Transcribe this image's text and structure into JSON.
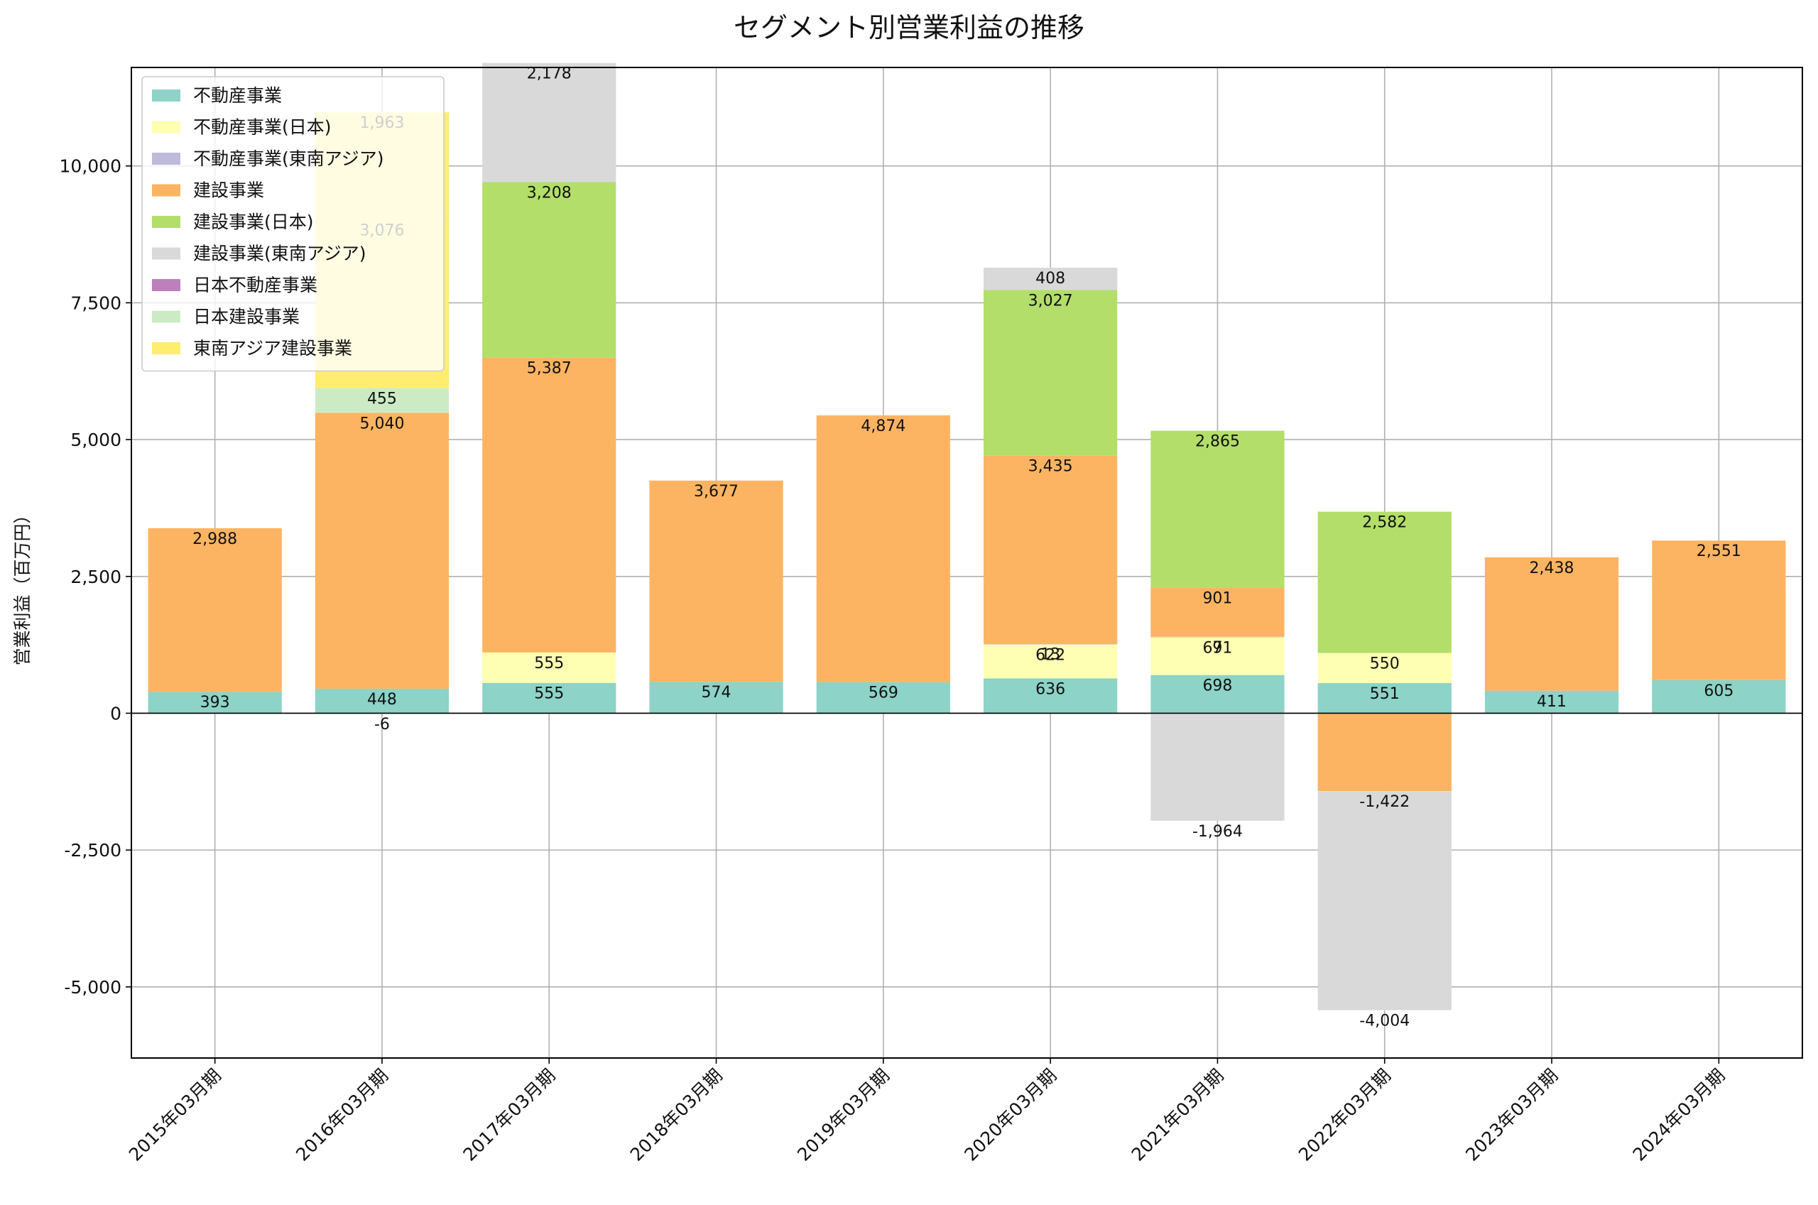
{
  "chart_data": {
    "type": "bar",
    "stacked": true,
    "title": "セグメント別営業利益の推移",
    "xlabel": "",
    "ylabel": "営業利益（百万円）",
    "ylim": [
      -6300,
      11800
    ],
    "yticks": [
      -5000,
      -2500,
      0,
      2500,
      5000,
      7500,
      10000
    ],
    "ytick_labels": [
      "-5,000",
      "-2,500",
      "0",
      "2,500",
      "5,000",
      "7,500",
      "10,000"
    ],
    "grid": true,
    "legend_position": "top-left",
    "categories": [
      "2015年03月期",
      "2016年03月期",
      "2017年03月期",
      "2018年03月期",
      "2019年03月期",
      "2020年03月期",
      "2021年03月期",
      "2022年03月期",
      "2023年03月期",
      "2024年03月期"
    ],
    "series": [
      {
        "name": "不動産事業",
        "color": "#8dd3c7",
        "values": [
          393,
          448,
          555,
          574,
          569,
          636,
          698,
          551,
          411,
          605
        ],
        "labels": [
          "393",
          "448",
          "555",
          "574",
          "569",
          "636",
          "698",
          "551",
          "411",
          "605"
        ]
      },
      {
        "name": "不動産事業(日本)",
        "color": "#ffffb3",
        "values": [
          null,
          null,
          555,
          null,
          null,
          622,
          691,
          550,
          null,
          null
        ],
        "labels": [
          "",
          "",
          "555",
          "",
          "",
          "622",
          "691",
          "550",
          "",
          ""
        ]
      },
      {
        "name": "不動産事業(東南アジア)",
        "color": "#bebada",
        "values": [
          null,
          null,
          null,
          null,
          null,
          13,
          7,
          null,
          null,
          null
        ],
        "labels": [
          "",
          "",
          "",
          "",
          "",
          "13",
          "7",
          "",
          "",
          ""
        ]
      },
      {
        "name": "建設事業",
        "color": "#fdb462",
        "values": [
          2988,
          5040,
          5387,
          3677,
          4874,
          3435,
          901,
          -1422,
          2438,
          2551
        ],
        "labels": [
          "2,988",
          "5,040",
          "5,387",
          "3,677",
          "4,874",
          "3,435",
          "901",
          "-1,422",
          "2,438",
          "2,551"
        ]
      },
      {
        "name": "建設事業(日本)",
        "color": "#b3de69",
        "values": [
          null,
          null,
          3208,
          null,
          null,
          3027,
          2865,
          2582,
          null,
          null
        ],
        "labels": [
          "",
          "",
          "3,208",
          "",
          "",
          "3,027",
          "2,865",
          "2,582",
          "",
          ""
        ]
      },
      {
        "name": "建設事業(東南アジア)",
        "color": "#d9d9d9",
        "values": [
          null,
          null,
          2178,
          null,
          null,
          408,
          -1964,
          -4004,
          null,
          null
        ],
        "labels": [
          "",
          "",
          "2,178",
          "",
          "",
          "408",
          "-1,964",
          "-4,004",
          "",
          ""
        ]
      },
      {
        "name": "日本不動産事業",
        "color": "#bc80bd",
        "values": [
          null,
          -6,
          null,
          null,
          null,
          null,
          null,
          null,
          null,
          null
        ],
        "labels": [
          "",
          "-6",
          "",
          "",
          "",
          "",
          "",
          "",
          "",
          ""
        ]
      },
      {
        "name": "日本建設事業",
        "color": "#ccebc5",
        "values": [
          null,
          455,
          null,
          null,
          null,
          null,
          null,
          null,
          null,
          null
        ],
        "labels": [
          "",
          "455",
          "",
          "",
          "",
          "",
          "",
          "",
          "",
          ""
        ]
      },
      {
        "name": "東南アジア建設事業",
        "color": "#ffed6f",
        "values": [
          null,
          3076,
          null,
          null,
          null,
          null,
          null,
          null,
          null,
          null
        ],
        "labels": [
          "",
          "3,076",
          "",
          "",
          "",
          "",
          "",
          "",
          "",
          ""
        ]
      },
      {
        "name": "",
        "color": "#ffed6f",
        "values": [
          null,
          1963,
          null,
          null,
          null,
          null,
          null,
          null,
          null,
          null
        ],
        "labels": [
          "",
          "1,963",
          "",
          "",
          "",
          "",
          "",
          "",
          "",
          ""
        ]
      }
    ]
  }
}
